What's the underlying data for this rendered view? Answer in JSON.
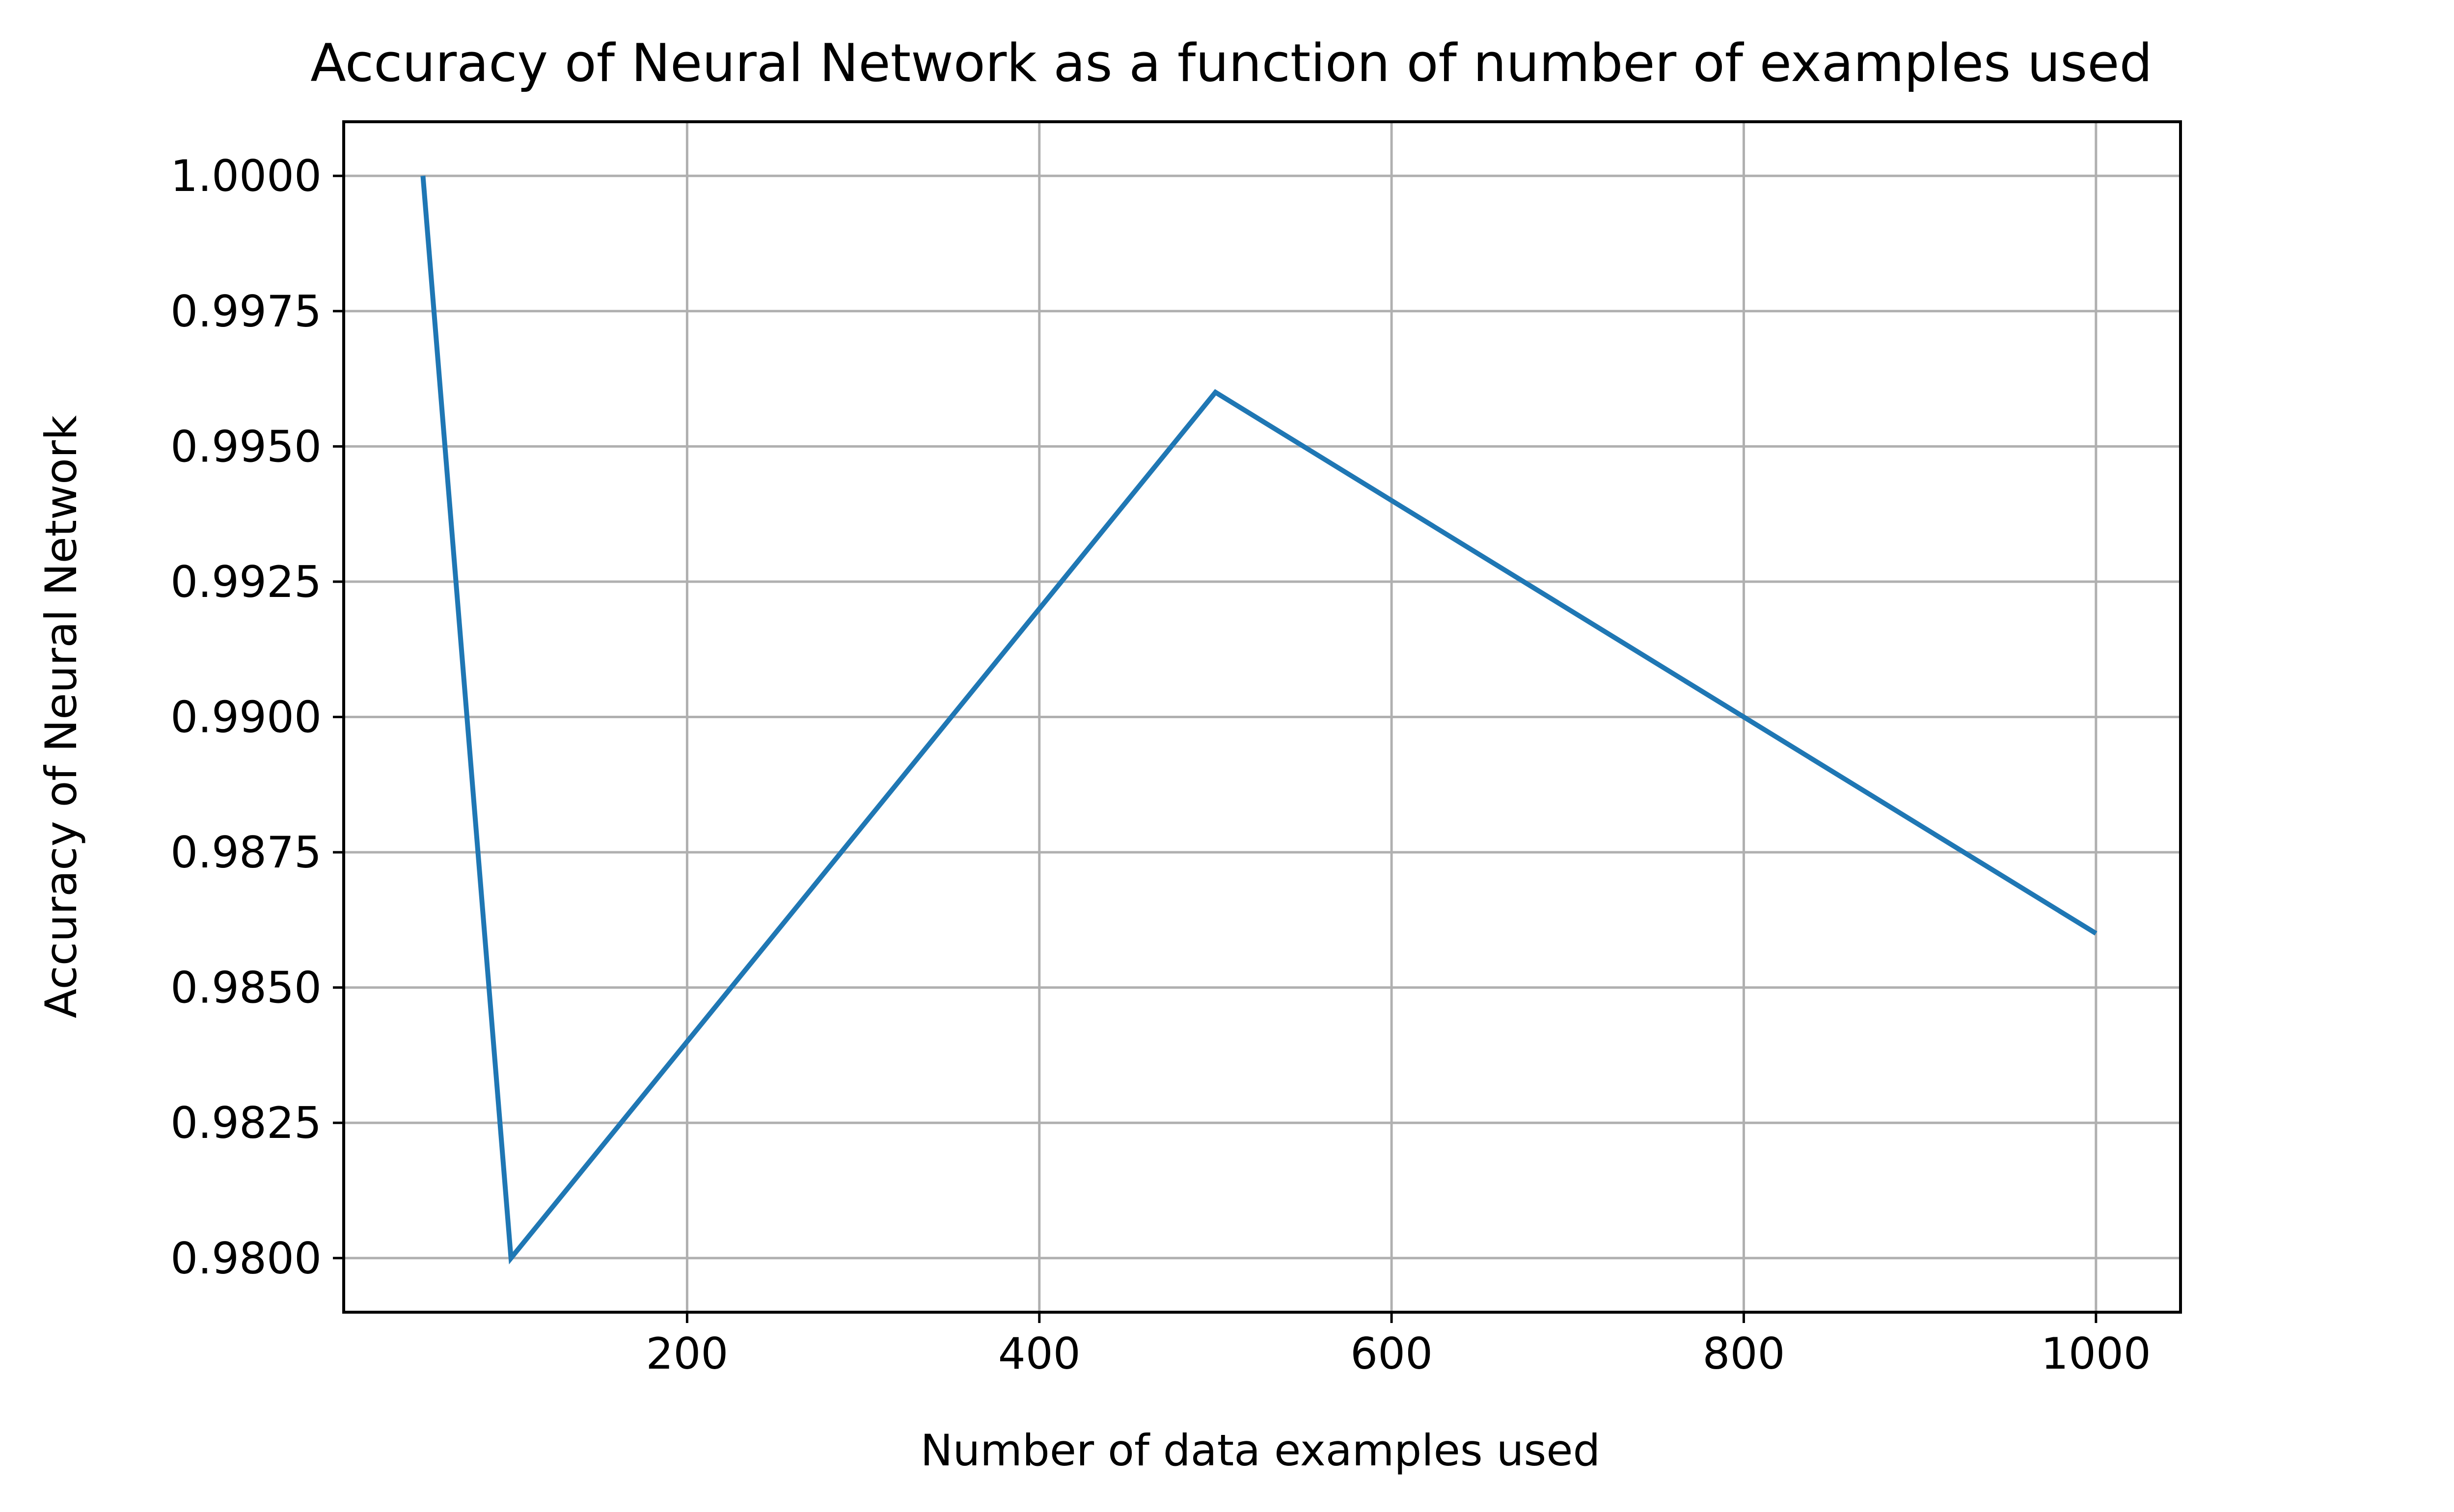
{
  "chart_data": {
    "type": "line",
    "title": "Accuracy of Neural Network as a function of number of examples used",
    "xlabel": "Number of data examples used",
    "ylabel": "Accuracy of Neural Network",
    "xlim": [
      5,
      1048
    ],
    "ylim": [
      0.979,
      1.001
    ],
    "xticks": [
      200,
      400,
      600,
      800,
      1000
    ],
    "xtick_labels": [
      "200",
      "400",
      "600",
      "800",
      "1000"
    ],
    "yticks": [
      0.98,
      0.9825,
      0.985,
      0.9875,
      0.99,
      0.9925,
      0.995,
      0.9975,
      1.0
    ],
    "ytick_labels": [
      "0.9800",
      "0.9825",
      "0.9850",
      "0.9875",
      "0.9900",
      "0.9925",
      "0.9950",
      "0.9975",
      "1.0000"
    ],
    "grid": true,
    "series": [
      {
        "x": [
          50,
          100,
          500,
          1000
        ],
        "values": [
          1.0,
          0.98,
          0.996,
          0.986
        ],
        "color": "#1f77b4"
      }
    ]
  }
}
